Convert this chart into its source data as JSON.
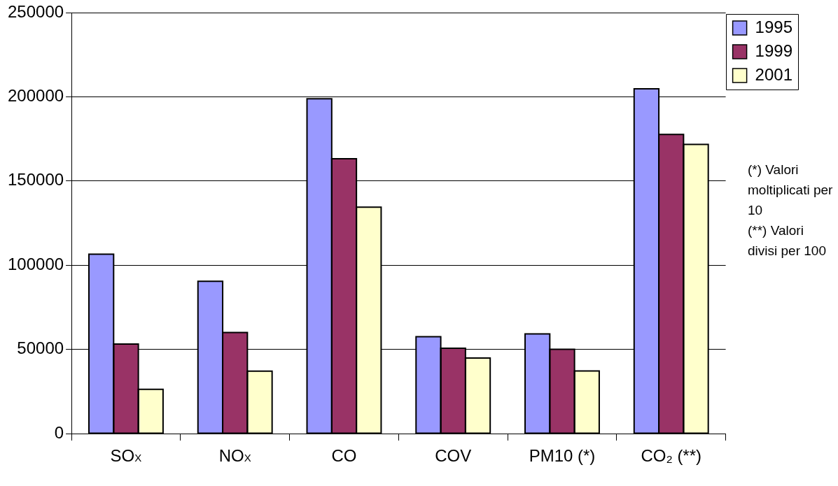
{
  "chart_data": {
    "type": "bar",
    "categories": [
      "SO$_{X}$",
      "NO$_{X}$",
      "CO",
      "COV",
      "PM10 (*)",
      "CO₂ (**)"
    ],
    "series": [
      {
        "name": "1995",
        "color": "#9999ff",
        "values": [
          106500,
          90400,
          198800,
          57500,
          59200,
          204700
        ]
      },
      {
        "name": "1999",
        "color": "#993366",
        "values": [
          53200,
          60000,
          163200,
          50700,
          50000,
          177600
        ]
      },
      {
        "name": "2001",
        "color": "#ffffcc",
        "values": [
          26300,
          37100,
          134400,
          44900,
          37200,
          171700
        ]
      }
    ],
    "ylim": [
      0,
      250000
    ],
    "yticks": [
      0,
      50000,
      100000,
      150000,
      200000,
      250000
    ],
    "grid": "y",
    "legend": "top right",
    "annotations": [
      "(*) Valori moltiplicati per 10",
      "(**) Valori divisi per 100"
    ]
  }
}
